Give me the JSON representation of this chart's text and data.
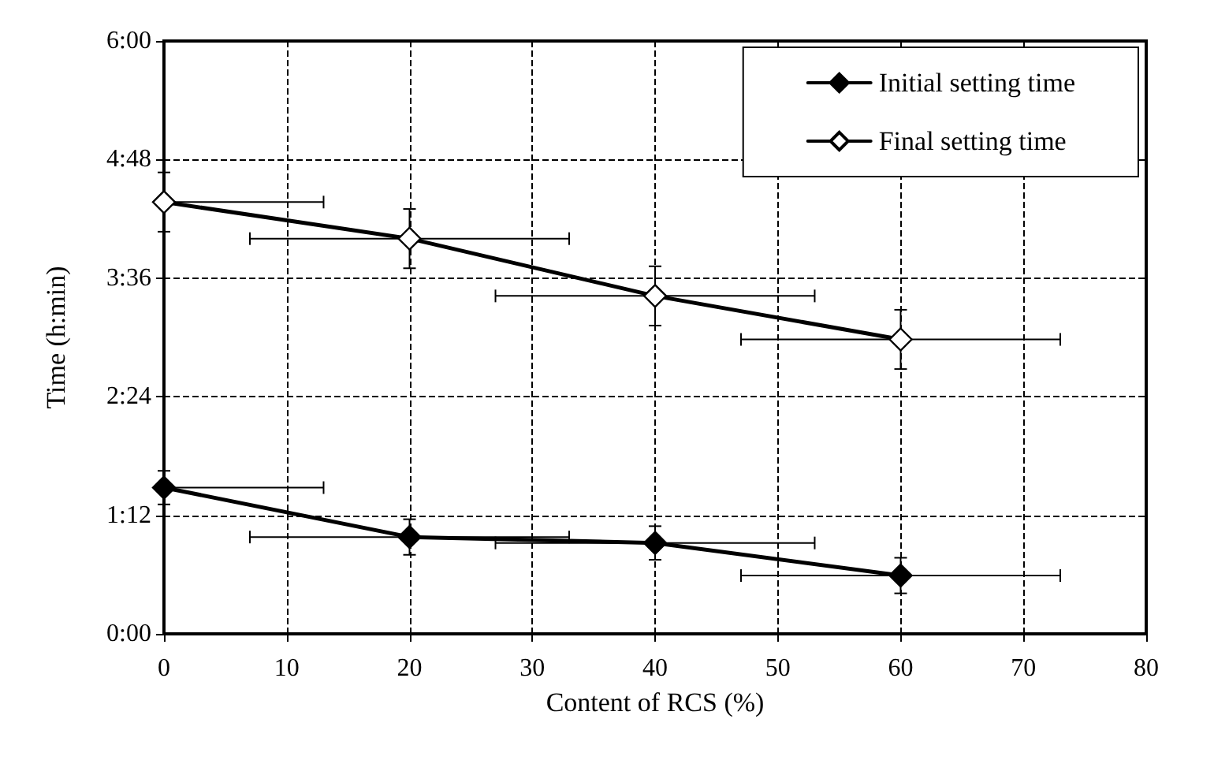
{
  "chart_data": {
    "type": "line",
    "xlabel": "Content of RCS (%)",
    "ylabel": "Time (h:min)",
    "x": [
      0,
      20,
      40,
      60
    ],
    "series": [
      {
        "name": "Initial setting time",
        "color": "#000000",
        "values": [
          1.48,
          0.98,
          0.92,
          0.59
        ],
        "errors": [
          0.17,
          0.18,
          0.17,
          0.18
        ],
        "xerrors": [
          [
            0,
            13
          ],
          13,
          13,
          13
        ]
      },
      {
        "name": "Final setting time",
        "color": "#000000",
        "values": [
          4.37,
          4.0,
          3.42,
          2.98
        ],
        "errors": [
          0.3,
          0.3,
          0.3,
          0.3
        ],
        "xerrors": [
          [
            0,
            13
          ],
          13,
          13,
          13
        ]
      }
    ],
    "xlim": [
      0,
      80
    ],
    "xticks": [
      0,
      10,
      20,
      30,
      40,
      50,
      60,
      70,
      80
    ],
    "ylim": [
      0,
      6
    ],
    "yticks": [
      {
        "value": 0,
        "label": "0:00"
      },
      {
        "value": 1.2,
        "label": "1:12"
      },
      {
        "value": 2.4,
        "label": "2:24"
      },
      {
        "value": 3.6,
        "label": "3:36"
      },
      {
        "value": 4.8,
        "label": "4:48"
      },
      {
        "value": 6,
        "label": "6:00"
      }
    ],
    "grid": true,
    "legend": "top right",
    "marker": "diamond",
    "line_style": "solid"
  }
}
